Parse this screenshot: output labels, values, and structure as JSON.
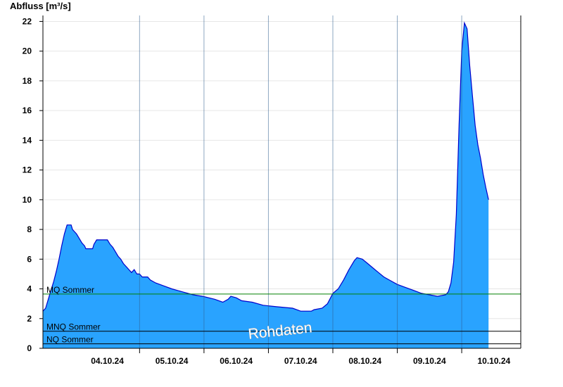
{
  "chart_data": {
    "type": "area",
    "ylabel": "Abfluss [m³/s]",
    "watermark": "Rohdaten",
    "ylim": [
      0,
      22.4
    ],
    "xlim": [
      "03.10.24 12:00",
      "10.10.24 22:00"
    ],
    "yticks": [
      0,
      2,
      4,
      6,
      8,
      10,
      12,
      14,
      16,
      18,
      20,
      22
    ],
    "ytick_labels": [
      "0",
      "2",
      "4",
      "6",
      "8",
      "10",
      "12",
      "14",
      "16",
      "18",
      "20",
      "22"
    ],
    "grid": true,
    "xticks": [
      {
        "label": "04.10.24",
        "t": "04.10.24 12:00"
      },
      {
        "label": "05.10.24",
        "t": "05.10.24 12:00"
      },
      {
        "label": "06.10.24",
        "t": "06.10.24 12:00"
      },
      {
        "label": "07.10.24",
        "t": "07.10.24 12:00"
      },
      {
        "label": "08.10.24",
        "t": "08.10.24 12:00"
      },
      {
        "label": "09.10.24",
        "t": "09.10.24 12:00"
      },
      {
        "label": "10.10.24",
        "t": "10.10.24 12:00"
      }
    ],
    "day_boundaries": [
      "05.10.24 00:00",
      "06.10.24 00:00",
      "07.10.24 00:00",
      "08.10.24 00:00",
      "09.10.24 00:00",
      "10.10.24 00:00"
    ],
    "reference_lines": [
      {
        "name": "MQ Sommer",
        "value": 3.65,
        "color": "#008000"
      },
      {
        "name": "MNQ Sommer",
        "value": 1.15,
        "color": "#000000"
      },
      {
        "name": "NQ Sommer",
        "value": 0.3,
        "color": "#000000"
      }
    ],
    "series": [
      {
        "fill": "#29a3ff",
        "line": "#0000cc",
        "points": [
          [
            "03.10.24 12:00",
            2.5
          ],
          [
            "03.10.24 13:00",
            2.7
          ],
          [
            "03.10.24 14:00",
            3.3
          ],
          [
            "03.10.24 15:00",
            3.9
          ],
          [
            "03.10.24 16:00",
            4.5
          ],
          [
            "03.10.24 17:00",
            5.2
          ],
          [
            "03.10.24 18:00",
            6.0
          ],
          [
            "03.10.24 19:00",
            6.9
          ],
          [
            "03.10.24 20:00",
            7.7
          ],
          [
            "03.10.24 21:00",
            8.3
          ],
          [
            "03.10.24 22:30",
            8.3
          ],
          [
            "03.10.24 23:00",
            8.0
          ],
          [
            "04.10.24 00:30",
            7.7
          ],
          [
            "04.10.24 01:30",
            7.4
          ],
          [
            "04.10.24 02:30",
            7.1
          ],
          [
            "04.10.24 03:30",
            6.9
          ],
          [
            "04.10.24 04:00",
            6.7
          ],
          [
            "04.10.24 06:30",
            6.7
          ],
          [
            "04.10.24 07:00",
            7.0
          ],
          [
            "04.10.24 08:00",
            7.3
          ],
          [
            "04.10.24 12:00",
            7.3
          ],
          [
            "04.10.24 13:00",
            7.0
          ],
          [
            "04.10.24 14:00",
            6.8
          ],
          [
            "04.10.24 15:00",
            6.5
          ],
          [
            "04.10.24 16:00",
            6.2
          ],
          [
            "04.10.24 17:00",
            6.0
          ],
          [
            "04.10.24 18:00",
            5.7
          ],
          [
            "04.10.24 19:00",
            5.5
          ],
          [
            "04.10.24 20:00",
            5.3
          ],
          [
            "04.10.24 21:00",
            5.1
          ],
          [
            "04.10.24 22:00",
            5.3
          ],
          [
            "04.10.24 23:00",
            5.0
          ],
          [
            "05.10.24 00:00",
            5.0
          ],
          [
            "05.10.24 01:00",
            4.8
          ],
          [
            "05.10.24 03:00",
            4.8
          ],
          [
            "05.10.24 04:00",
            4.6
          ],
          [
            "05.10.24 06:00",
            4.4
          ],
          [
            "05.10.24 09:00",
            4.2
          ],
          [
            "05.10.24 12:00",
            4.0
          ],
          [
            "05.10.24 16:00",
            3.8
          ],
          [
            "05.10.24 20:00",
            3.6
          ],
          [
            "05.10.24 23:30",
            3.5
          ],
          [
            "06.10.24 04:00",
            3.3
          ],
          [
            "06.10.24 07:00",
            3.1
          ],
          [
            "06.10.24 09:00",
            3.3
          ],
          [
            "06.10.24 10:00",
            3.5
          ],
          [
            "06.10.24 12:00",
            3.4
          ],
          [
            "06.10.24 14:00",
            3.2
          ],
          [
            "06.10.24 18:00",
            3.1
          ],
          [
            "06.10.24 22:00",
            2.9
          ],
          [
            "07.10.24 03:00",
            2.8
          ],
          [
            "07.10.24 09:00",
            2.7
          ],
          [
            "07.10.24 12:00",
            2.5
          ],
          [
            "07.10.24 16:00",
            2.5
          ],
          [
            "07.10.24 17:00",
            2.6
          ],
          [
            "07.10.24 20:00",
            2.7
          ],
          [
            "07.10.24 22:00",
            3.0
          ],
          [
            "08.10.24 00:00",
            3.7
          ],
          [
            "08.10.24 02:00",
            4.0
          ],
          [
            "08.10.24 04:00",
            4.6
          ],
          [
            "08.10.24 06:00",
            5.3
          ],
          [
            "08.10.24 08:00",
            5.9
          ],
          [
            "08.10.24 09:00",
            6.1
          ],
          [
            "08.10.24 11:00",
            6.0
          ],
          [
            "08.10.24 13:00",
            5.7
          ],
          [
            "08.10.24 15:00",
            5.4
          ],
          [
            "08.10.24 17:00",
            5.1
          ],
          [
            "08.10.24 19:00",
            4.8
          ],
          [
            "08.10.24 21:00",
            4.6
          ],
          [
            "09.10.24 00:00",
            4.3
          ],
          [
            "09.10.24 03:00",
            4.1
          ],
          [
            "09.10.24 06:00",
            3.9
          ],
          [
            "09.10.24 09:00",
            3.7
          ],
          [
            "09.10.24 12:00",
            3.6
          ],
          [
            "09.10.24 15:00",
            3.5
          ],
          [
            "09.10.24 18:00",
            3.6
          ],
          [
            "09.10.24 19:00",
            3.8
          ],
          [
            "09.10.24 20:00",
            4.4
          ],
          [
            "09.10.24 21:00",
            5.8
          ],
          [
            "09.10.24 22:00",
            9.0
          ],
          [
            "09.10.24 23:00",
            15.0
          ],
          [
            "10.10.24 00:00",
            20.0
          ],
          [
            "10.10.24 01:00",
            21.9
          ],
          [
            "10.10.24 02:00",
            21.5
          ],
          [
            "10.10.24 03:00",
            19.0
          ],
          [
            "10.10.24 04:00",
            17.0
          ],
          [
            "10.10.24 05:00",
            15.0
          ],
          [
            "10.10.24 06:00",
            13.7
          ],
          [
            "10.10.24 07:00",
            12.8
          ],
          [
            "10.10.24 08:00",
            11.7
          ],
          [
            "10.10.24 09:00",
            10.8
          ],
          [
            "10.10.24 10:00",
            10.0
          ]
        ]
      }
    ]
  }
}
